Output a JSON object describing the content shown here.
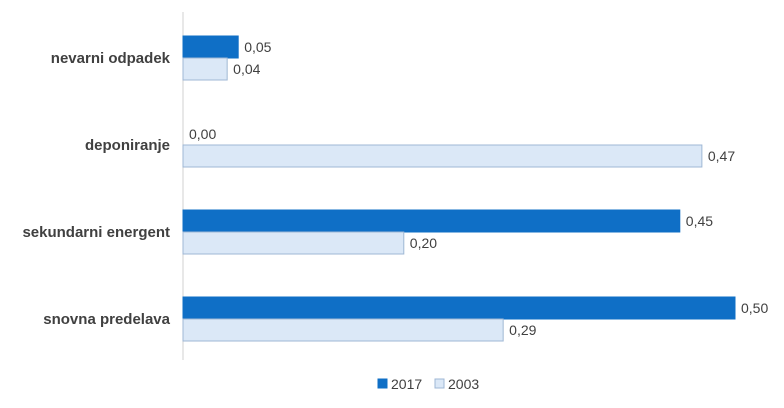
{
  "chart_data": {
    "type": "bar",
    "orientation": "horizontal",
    "categories": [
      "nevarni odpadek",
      "deponiranje",
      "sekundarni energent",
      "snovna predelava"
    ],
    "series": [
      {
        "name": "2017",
        "values": [
          0.05,
          0.0,
          0.45,
          0.5
        ],
        "labels": [
          "0,05",
          "0,00",
          "0,45",
          "0,50"
        ],
        "color": "#0f6fc6",
        "stroke": "#0f6fc6"
      },
      {
        "name": "2003",
        "values": [
          0.04,
          0.47,
          0.2,
          0.29
        ],
        "labels": [
          "0,04",
          "0,47",
          "0,20",
          "0,29"
        ],
        "color": "#dbe8f7",
        "stroke": "#9fb7d4"
      }
    ],
    "xlim": [
      0,
      0.5
    ],
    "grid": false,
    "legend_position": "bottom"
  }
}
